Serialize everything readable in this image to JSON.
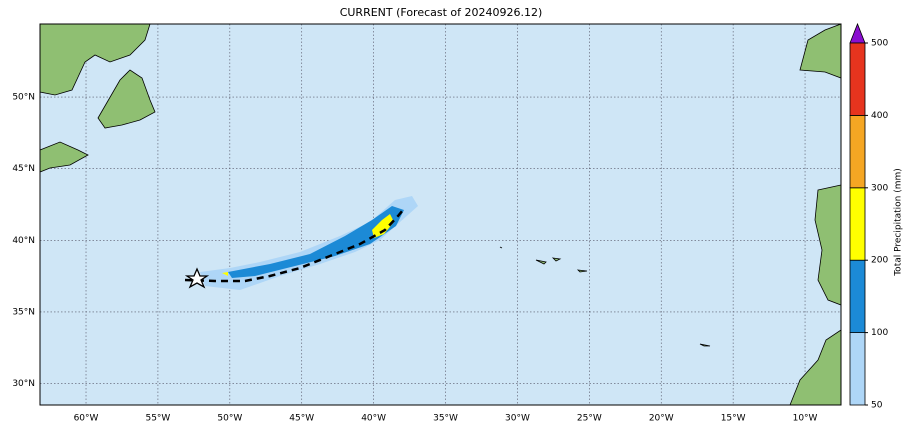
{
  "title": "CURRENT (Forecast of 20240926.12)",
  "map": {
    "xlim": [
      -63.2,
      -7.5
    ],
    "ylim": [
      28.5,
      55.1
    ],
    "xticks": [
      {
        "value": -60,
        "label": "60°W"
      },
      {
        "value": -55,
        "label": "55°W"
      },
      {
        "value": -50,
        "label": "50°W"
      },
      {
        "value": -45,
        "label": "45°W"
      },
      {
        "value": -40,
        "label": "40°W"
      },
      {
        "value": -35,
        "label": "35°W"
      },
      {
        "value": -30,
        "label": "30°W"
      },
      {
        "value": -25,
        "label": "25°W"
      },
      {
        "value": -20,
        "label": "20°W"
      },
      {
        "value": -15,
        "label": "15°W"
      },
      {
        "value": -10,
        "label": "10°W"
      }
    ],
    "yticks": [
      {
        "value": 30,
        "label": "30°N"
      },
      {
        "value": 35,
        "label": "35°N"
      },
      {
        "value": 40,
        "label": "40°N"
      },
      {
        "value": 45,
        "label": "45°N"
      },
      {
        "value": 50,
        "label": "50°N"
      }
    ],
    "grid": true
  },
  "colorbar": {
    "label": "Total Precipitation (mm)",
    "boundaries": [
      50,
      100,
      200,
      300,
      400,
      500
    ],
    "colors": [
      "#aed6f7",
      "#1c8ad6",
      "#ffff00",
      "#f5a623",
      "#e6341e"
    ],
    "extend_color": "#8a0fd0"
  }
}
